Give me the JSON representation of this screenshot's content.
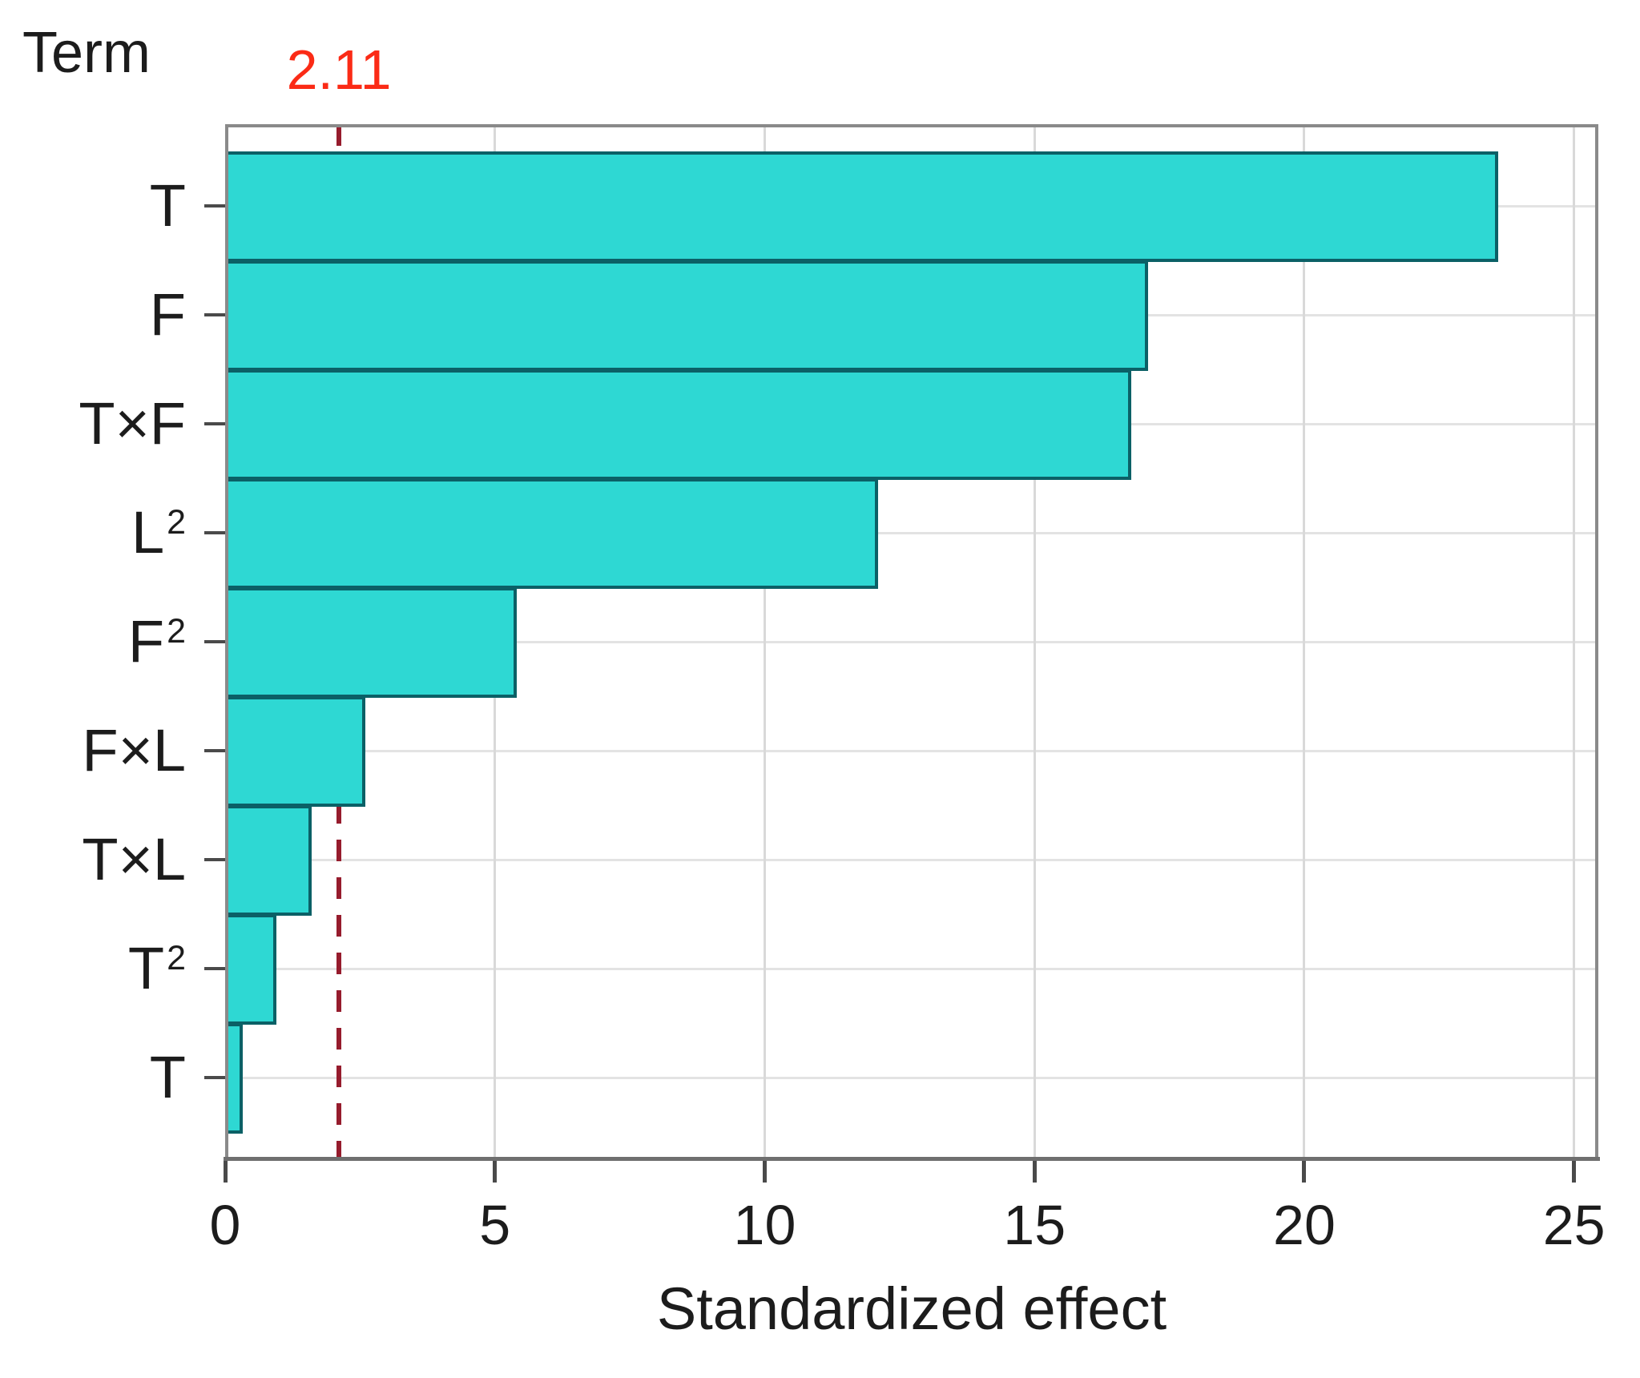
{
  "chart_data": {
    "type": "bar",
    "orientation": "horizontal",
    "term_axis_title": "Term",
    "xlabel": "Standardized effect",
    "categories": [
      {
        "label": "T"
      },
      {
        "label": "F"
      },
      {
        "label": "T×F"
      },
      {
        "label": "L",
        "sup": "2"
      },
      {
        "label": "F",
        "sup": "2"
      },
      {
        "label": "F×L"
      },
      {
        "label": "T×L"
      },
      {
        "label": "T",
        "sup": "2"
      },
      {
        "label": "T"
      }
    ],
    "values": [
      23.6,
      17.1,
      16.8,
      12.1,
      5.4,
      2.6,
      1.6,
      0.95,
      0.33
    ],
    "x_ticks": [
      0,
      5,
      10,
      15,
      20,
      25
    ],
    "xlim": [
      0,
      25.45
    ],
    "reference_line": {
      "value": 2.11,
      "label": "2.11"
    },
    "grid": true,
    "legend": "none",
    "colors": {
      "bar_fill": "#2ed8d3",
      "bar_border": "#0b6066",
      "reference_line": "#961c2d",
      "reference_label": "#fb2b16",
      "grid_line": "#d9d9d9",
      "axis_border": "#8a8a8a",
      "text": "#1c1c1c"
    }
  }
}
